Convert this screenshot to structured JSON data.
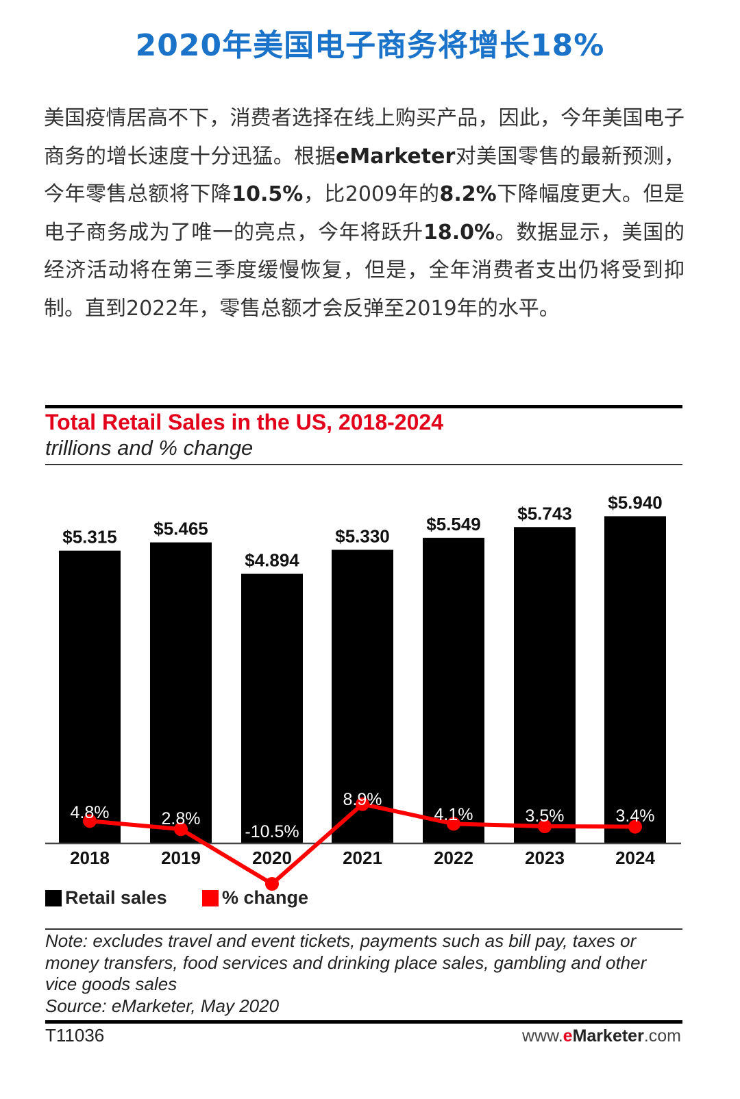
{
  "headline": "2020年美国电子商务将增长18%",
  "article": {
    "segments": [
      {
        "text": "美国疫情居高不下，消费者选择在线上购买产品，因此，今年美国电子商务的增长速度十分迅猛。根据",
        "bold": false
      },
      {
        "text": "eMarketer",
        "bold": true
      },
      {
        "text": "对美国零售的最新预测，今年零售总额将下降",
        "bold": false
      },
      {
        "text": "10.5%",
        "bold": true
      },
      {
        "text": "，比2009年的",
        "bold": false
      },
      {
        "text": "8.2%",
        "bold": true
      },
      {
        "text": "下降幅度更大。但是电子商务成为了唯一的亮点，今年将跃升",
        "bold": false
      },
      {
        "text": "18.0%",
        "bold": true
      },
      {
        "text": "。数据显示，美国的经济活动将在第三季度缓慢恢复，但是，全年消费者支出仍将受到抑制。直到2022年，零售总额才会反弹至2019年的水平。",
        "bold": false
      }
    ]
  },
  "chart_data": {
    "type": "bar",
    "title": "Total Retail Sales in the US, 2018-2024",
    "subtitle": "trillions and % change",
    "categories": [
      "2018",
      "2019",
      "2020",
      "2021",
      "2022",
      "2023",
      "2024"
    ],
    "series": [
      {
        "name": "Retail sales",
        "type": "bar",
        "color": "#000000",
        "values": [
          5.315,
          5.465,
          4.894,
          5.33,
          5.549,
          5.743,
          5.94
        ],
        "labels": [
          "$5.315",
          "$5.465",
          "$4.894",
          "$5.330",
          "$5.549",
          "$5.743",
          "$5.940"
        ]
      },
      {
        "name": "% change",
        "type": "line",
        "color": "#ff0000",
        "values": [
          4.8,
          2.8,
          -10.5,
          8.9,
          4.1,
          3.5,
          3.4
        ],
        "labels": [
          "4.8%",
          "2.8%",
          "-10.5%",
          "8.9%",
          "4.1%",
          "3.5%",
          "3.4%"
        ]
      }
    ],
    "legend_position": "bottom-left",
    "grid": false,
    "note": "Note: excludes travel and event tickets, payments such as bill pay, taxes or money transfers, food services and drinking place sales, gambling and other vice goods sales",
    "source": "Source: eMarketer, May 2020",
    "chart_id": "T11036",
    "site": {
      "prefix": "www.",
      "brand_e": "e",
      "brand_rest": "Marketer",
      "suffix": ".com"
    }
  }
}
